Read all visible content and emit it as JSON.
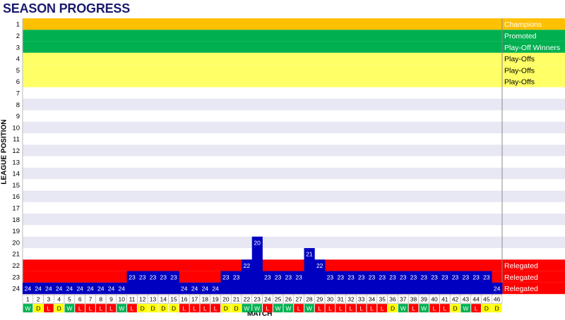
{
  "chart_data": {
    "type": "bar",
    "title": "SEASON PROGRESS",
    "xlabel": "MATCH",
    "ylabel": "LEAGUE POSITION",
    "ylim": [
      1,
      24
    ],
    "y_ticks": [
      "1",
      "2",
      "3",
      "4",
      "5",
      "6",
      "7",
      "8",
      "9",
      "10",
      "11",
      "12",
      "13",
      "14",
      "15",
      "16",
      "17",
      "18",
      "19",
      "20",
      "21",
      "22",
      "23",
      "24"
    ],
    "zones": [
      {
        "positions": [
          1
        ],
        "label": "Champions",
        "color": "#ffc000"
      },
      {
        "positions": [
          2,
          3
        ],
        "label": [
          "Promoted",
          "Play-Off Winners"
        ],
        "color": "#00b050"
      },
      {
        "positions": [
          4,
          5,
          6
        ],
        "label": [
          "Play-Offs",
          "Play-Offs",
          "Play-Offs"
        ],
        "color": "#ffff66"
      },
      {
        "positions": [
          22,
          23,
          24
        ],
        "label": [
          "Relegated",
          "Relegated",
          "Relegated"
        ],
        "color": "#ff0000"
      }
    ],
    "zone_labels": {
      "1": "Champions",
      "2": "Promoted",
      "3": "Play-Off Winners",
      "4": "Play-Offs",
      "5": "Play-Offs",
      "6": "Play-Offs",
      "22": "Relegated",
      "23": "Relegated",
      "24": "Relegated"
    },
    "matches": [
      1,
      2,
      3,
      4,
      5,
      6,
      7,
      8,
      9,
      10,
      11,
      12,
      13,
      14,
      15,
      16,
      17,
      18,
      19,
      20,
      21,
      22,
      23,
      24,
      25,
      26,
      27,
      28,
      29,
      30,
      31,
      32,
      33,
      34,
      35,
      36,
      37,
      38,
      39,
      40,
      41,
      42,
      43,
      44,
      45,
      46
    ],
    "positions": [
      24,
      24,
      24,
      24,
      24,
      24,
      24,
      24,
      24,
      24,
      23,
      23,
      23,
      23,
      23,
      24,
      24,
      24,
      24,
      23,
      23,
      22,
      20,
      23,
      23,
      23,
      23,
      21,
      22,
      23,
      23,
      23,
      23,
      23,
      23,
      23,
      23,
      23,
      23,
      23,
      23,
      23,
      23,
      23,
      23,
      24
    ],
    "results": [
      "W",
      "D",
      "L",
      "D",
      "W",
      "L",
      "L",
      "L",
      "L",
      "W",
      "L",
      "D",
      "D",
      "D",
      "D",
      "L",
      "L",
      "L",
      "L",
      "D",
      "D",
      "W",
      "W",
      "L",
      "W",
      "W",
      "L",
      "W",
      "L",
      "L",
      "L",
      "L",
      "L",
      "L",
      "L",
      "D",
      "W",
      "L",
      "W",
      "L",
      "L",
      "D",
      "W",
      "L",
      "D",
      "D"
    ],
    "result_colors": {
      "W": "#00b050",
      "D": "#ffff00",
      "L": "#ff0000"
    },
    "bar_color": "#0000c0",
    "band_color": "#e8e8f4"
  }
}
